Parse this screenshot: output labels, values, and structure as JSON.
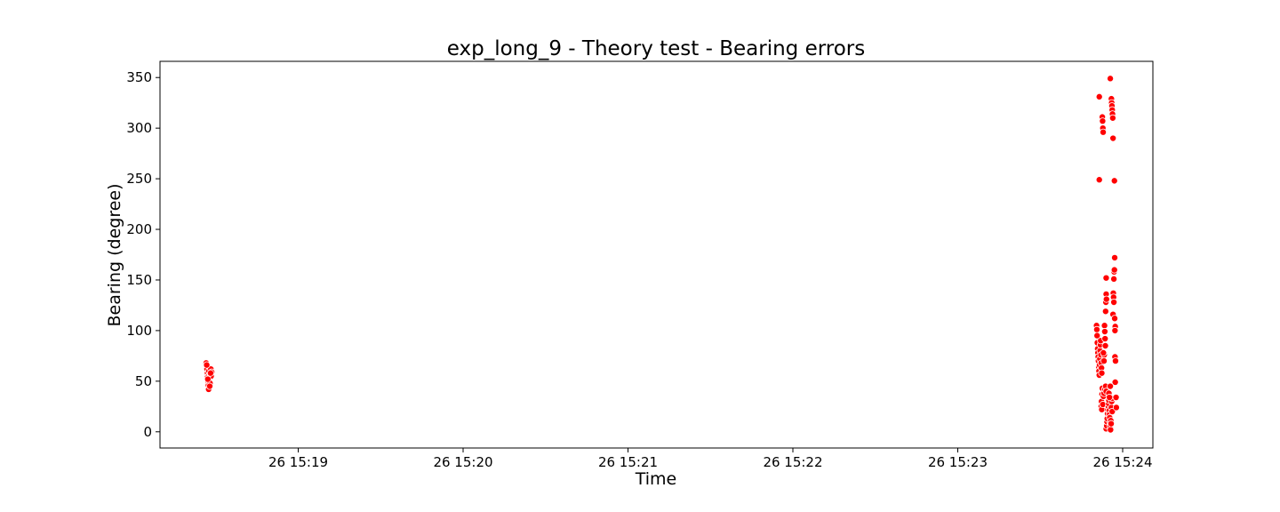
{
  "chart_data": {
    "type": "scatter",
    "title": "exp_long_9 - Theory test - Bearing errors",
    "xlabel": "Time",
    "ylabel": "Bearing (degree)",
    "x_unit": "seconds after 26 15:18:00",
    "xlim": [
      9.7,
      371
    ],
    "ylim": [
      -16,
      366
    ],
    "x_ticks": [
      {
        "value": 60,
        "label": "26 15:19"
      },
      {
        "value": 120,
        "label": "26 15:20"
      },
      {
        "value": 180,
        "label": "26 15:21"
      },
      {
        "value": 240,
        "label": "26 15:22"
      },
      {
        "value": 300,
        "label": "26 15:23"
      },
      {
        "value": 360,
        "label": "26 15:24"
      }
    ],
    "y_ticks": [
      0,
      50,
      100,
      150,
      200,
      250,
      300,
      350
    ],
    "grid": false,
    "marker_color": "#ff0000",
    "series": [
      {
        "points": [
          [
            26.5,
            68
          ],
          [
            26.6,
            65
          ],
          [
            26.8,
            62
          ],
          [
            27.0,
            58
          ],
          [
            27.0,
            54
          ],
          [
            27.2,
            50
          ],
          [
            27.3,
            46
          ],
          [
            27.4,
            42
          ],
          [
            27.5,
            60
          ],
          [
            27.6,
            56
          ],
          [
            27.7,
            53
          ],
          [
            27.9,
            48
          ],
          [
            28.0,
            57
          ],
          [
            28.2,
            62
          ],
          [
            28.3,
            55
          ],
          [
            28.5,
            59
          ],
          [
            26.7,
            66
          ],
          [
            27.1,
            52
          ],
          [
            27.8,
            45
          ],
          [
            28.1,
            58
          ],
          [
            350.5,
            105
          ],
          [
            350.6,
            101
          ],
          [
            350.7,
            95
          ],
          [
            350.8,
            88
          ],
          [
            350.9,
            82
          ],
          [
            351.0,
            78
          ],
          [
            351.1,
            74
          ],
          [
            351.2,
            70
          ],
          [
            351.3,
            64
          ],
          [
            351.4,
            60
          ],
          [
            351.5,
            56
          ],
          [
            351.6,
            66
          ],
          [
            351.7,
            72
          ],
          [
            351.8,
            80
          ],
          [
            351.9,
            86
          ],
          [
            352.0,
            90
          ],
          [
            352.1,
            76
          ],
          [
            352.2,
            68
          ],
          [
            352.3,
            63
          ],
          [
            352.4,
            58
          ],
          [
            351.5,
            331
          ],
          [
            351.5,
            249
          ],
          [
            352.6,
            311
          ],
          [
            352.7,
            307
          ],
          [
            352.8,
            300
          ],
          [
            352.9,
            296
          ],
          [
            352.6,
            43
          ],
          [
            352.5,
            37
          ],
          [
            352.3,
            30
          ],
          [
            352.2,
            25
          ],
          [
            352.4,
            22
          ],
          [
            352.8,
            27
          ],
          [
            353.0,
            35
          ],
          [
            353.2,
            38
          ],
          [
            353.5,
            42
          ],
          [
            353.8,
            45
          ],
          [
            354.0,
            40
          ],
          [
            353.4,
            105
          ],
          [
            353.5,
            99
          ],
          [
            353.6,
            92
          ],
          [
            353.7,
            85
          ],
          [
            353.3,
            76
          ],
          [
            353.2,
            70
          ],
          [
            353.0,
            78
          ],
          [
            353.8,
            119
          ],
          [
            353.9,
            128
          ],
          [
            354.0,
            136
          ],
          [
            354.1,
            131
          ],
          [
            354.0,
            152
          ],
          [
            354.0,
            3
          ],
          [
            354.2,
            6
          ],
          [
            354.3,
            10
          ],
          [
            354.4,
            13
          ],
          [
            354.5,
            18
          ],
          [
            354.6,
            22
          ],
          [
            354.8,
            25
          ],
          [
            354.9,
            28
          ],
          [
            355.0,
            31
          ],
          [
            355.1,
            21
          ],
          [
            355.2,
            17
          ],
          [
            355.3,
            14
          ],
          [
            355.4,
            9
          ],
          [
            355.5,
            5
          ],
          [
            355.6,
            2
          ],
          [
            355.7,
            11
          ],
          [
            355.8,
            8
          ],
          [
            355.9,
            24
          ],
          [
            356.0,
            30
          ],
          [
            356.1,
            33
          ],
          [
            356.2,
            20
          ],
          [
            355.0,
            38
          ],
          [
            355.5,
            45
          ],
          [
            355.2,
            34
          ],
          [
            355.5,
            349
          ],
          [
            355.9,
            329
          ],
          [
            356.0,
            325
          ],
          [
            356.1,
            322
          ],
          [
            356.2,
            318
          ],
          [
            356.3,
            314
          ],
          [
            356.4,
            310
          ],
          [
            356.5,
            290
          ],
          [
            356.6,
            137
          ],
          [
            356.7,
            133
          ],
          [
            356.8,
            128
          ],
          [
            356.9,
            158
          ],
          [
            357.0,
            160
          ],
          [
            357.1,
            172
          ],
          [
            356.5,
            116
          ],
          [
            357.1,
            112
          ],
          [
            357.3,
            104
          ],
          [
            357.2,
            100
          ],
          [
            356.8,
            151
          ],
          [
            357.0,
            248
          ],
          [
            357.2,
            74
          ],
          [
            357.4,
            70
          ],
          [
            357.3,
            49
          ],
          [
            357.6,
            34
          ],
          [
            357.7,
            24
          ]
        ]
      }
    ]
  }
}
